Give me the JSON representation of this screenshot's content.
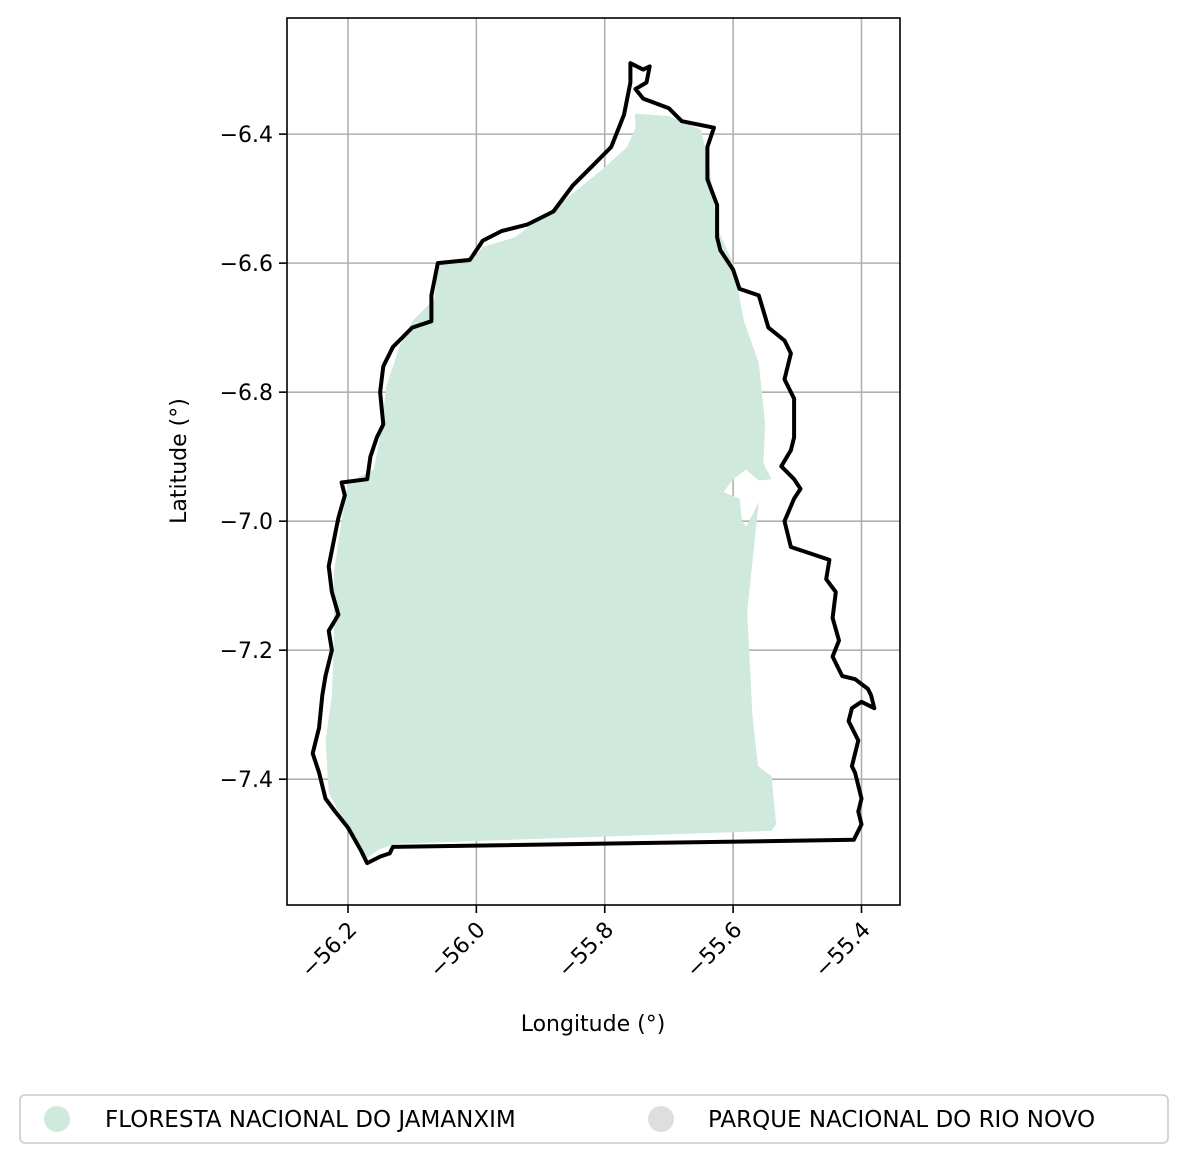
{
  "chart_data": {
    "type": "map",
    "xlabel": "Longitude (°)",
    "ylabel": "Latitude (°)",
    "xlim": [
      -56.295,
      -55.34
    ],
    "ylim": [
      -7.595,
      -6.22
    ],
    "grid": true,
    "x_ticks": [
      -56.2,
      -56.0,
      -55.8,
      -55.6,
      -55.4
    ],
    "y_ticks": [
      -6.4,
      -6.6,
      -6.8,
      -7.0,
      -7.2,
      -7.4
    ],
    "x_tick_labels": [
      "−56.2",
      "−56.0",
      "−55.8",
      "−55.6",
      "−55.4"
    ],
    "y_tick_labels": [
      "−6.4",
      "−6.6",
      "−6.8",
      "−7.0",
      "−7.2",
      "−7.4"
    ],
    "legend_position": "bottom",
    "series": [
      {
        "name": "FLORESTA NACIONAL DO JAMANXIM",
        "color": "#cfe9dd",
        "geometry_type": "polygon",
        "coordinates": [
          [
            -55.753,
            -6.368
          ],
          [
            -55.7,
            -6.372
          ],
          [
            -55.65,
            -6.393
          ],
          [
            -55.637,
            -6.45
          ],
          [
            -55.625,
            -6.545
          ],
          [
            -55.6,
            -6.6
          ],
          [
            -55.583,
            -6.69
          ],
          [
            -55.56,
            -6.755
          ],
          [
            -55.55,
            -6.85
          ],
          [
            -55.553,
            -6.91
          ],
          [
            -55.54,
            -6.935
          ],
          [
            -55.56,
            -6.937
          ],
          [
            -55.58,
            -6.92
          ],
          [
            -55.6,
            -6.935
          ],
          [
            -55.615,
            -6.955
          ],
          [
            -55.59,
            -6.965
          ],
          [
            -55.586,
            -7.0
          ],
          [
            -55.57,
            -7.02
          ],
          [
            -55.575,
            -7.06
          ],
          [
            -55.59,
            -7.095
          ],
          [
            -55.62,
            -7.115
          ],
          [
            -55.66,
            -7.13
          ],
          [
            -55.83,
            -7.16
          ],
          [
            -55.818,
            -7.148
          ],
          [
            -55.66,
            -7.115
          ],
          [
            -55.62,
            -7.095
          ],
          [
            -55.59,
            -7.07
          ],
          [
            -55.58,
            -7.01
          ],
          [
            -55.56,
            -6.97
          ],
          [
            -55.578,
            -7.14
          ],
          [
            -55.57,
            -7.3
          ],
          [
            -55.561,
            -7.38
          ],
          [
            -55.54,
            -7.395
          ],
          [
            -55.533,
            -7.47
          ],
          [
            -55.54,
            -7.48
          ],
          [
            -56.125,
            -7.5
          ],
          [
            -56.15,
            -7.508
          ],
          [
            -56.17,
            -7.522
          ],
          [
            -56.19,
            -7.49
          ],
          [
            -56.215,
            -7.45
          ],
          [
            -56.23,
            -7.42
          ],
          [
            -56.235,
            -7.34
          ],
          [
            -56.225,
            -7.27
          ],
          [
            -56.222,
            -7.18
          ],
          [
            -56.222,
            -7.08
          ],
          [
            -56.21,
            -7.0
          ],
          [
            -56.2,
            -6.94
          ],
          [
            -56.16,
            -6.92
          ],
          [
            -56.15,
            -6.87
          ],
          [
            -56.14,
            -6.79
          ],
          [
            -56.12,
            -6.73
          ],
          [
            -56.1,
            -6.69
          ],
          [
            -56.065,
            -6.655
          ],
          [
            -56.06,
            -6.6
          ],
          [
            -56.01,
            -6.6
          ],
          [
            -55.99,
            -6.575
          ],
          [
            -55.94,
            -6.56
          ],
          [
            -55.9,
            -6.53
          ],
          [
            -55.86,
            -6.5
          ],
          [
            -55.81,
            -6.46
          ],
          [
            -55.765,
            -6.42
          ],
          [
            -55.752,
            -6.39
          ]
        ]
      },
      {
        "name": "PARQUE NACIONAL DO RIO NOVO",
        "color": "#dedede",
        "geometry_type": "polygon",
        "coordinates": []
      }
    ],
    "boundary": {
      "color": "#000000",
      "coordinates": [
        [
          -55.76,
          -6.29
        ],
        [
          -55.74,
          -6.3
        ],
        [
          -55.73,
          -6.295
        ],
        [
          -55.735,
          -6.32
        ],
        [
          -55.752,
          -6.33
        ],
        [
          -55.74,
          -6.345
        ],
        [
          -55.7,
          -6.36
        ],
        [
          -55.68,
          -6.38
        ],
        [
          -55.63,
          -6.39
        ],
        [
          -55.64,
          -6.42
        ],
        [
          -55.64,
          -6.47
        ],
        [
          -55.625,
          -6.51
        ],
        [
          -55.625,
          -6.56
        ],
        [
          -55.62,
          -6.58
        ],
        [
          -55.6,
          -6.61
        ],
        [
          -55.59,
          -6.64
        ],
        [
          -55.56,
          -6.65
        ],
        [
          -55.545,
          -6.7
        ],
        [
          -55.52,
          -6.72
        ],
        [
          -55.51,
          -6.74
        ],
        [
          -55.52,
          -6.78
        ],
        [
          -55.505,
          -6.81
        ],
        [
          -55.505,
          -6.87
        ],
        [
          -55.51,
          -6.89
        ],
        [
          -55.525,
          -6.915
        ],
        [
          -55.505,
          -6.935
        ],
        [
          -55.495,
          -6.95
        ],
        [
          -55.505,
          -6.965
        ],
        [
          -55.52,
          -7.0
        ],
        [
          -55.51,
          -7.04
        ],
        [
          -55.48,
          -7.05
        ],
        [
          -55.45,
          -7.06
        ],
        [
          -55.455,
          -7.09
        ],
        [
          -55.44,
          -7.11
        ],
        [
          -55.445,
          -7.15
        ],
        [
          -55.435,
          -7.185
        ],
        [
          -55.445,
          -7.21
        ],
        [
          -55.43,
          -7.24
        ],
        [
          -55.41,
          -7.245
        ],
        [
          -55.39,
          -7.26
        ],
        [
          -55.385,
          -7.27
        ],
        [
          -55.38,
          -7.29
        ],
        [
          -55.4,
          -7.28
        ],
        [
          -55.415,
          -7.29
        ],
        [
          -55.42,
          -7.31
        ],
        [
          -55.405,
          -7.34
        ],
        [
          -55.415,
          -7.38
        ],
        [
          -55.41,
          -7.39
        ],
        [
          -55.4,
          -7.43
        ],
        [
          -55.405,
          -7.45
        ],
        [
          -55.4,
          -7.47
        ],
        [
          -55.412,
          -7.494
        ],
        [
          -56.13,
          -7.505
        ],
        [
          -56.135,
          -7.515
        ],
        [
          -56.15,
          -7.52
        ],
        [
          -56.17,
          -7.53
        ],
        [
          -56.18,
          -7.51
        ],
        [
          -56.2,
          -7.475
        ],
        [
          -56.22,
          -7.45
        ],
        [
          -56.235,
          -7.43
        ],
        [
          -56.245,
          -7.39
        ],
        [
          -56.255,
          -7.36
        ],
        [
          -56.245,
          -7.32
        ],
        [
          -56.24,
          -7.27
        ],
        [
          -56.235,
          -7.24
        ],
        [
          -56.225,
          -7.2
        ],
        [
          -56.23,
          -7.17
        ],
        [
          -56.215,
          -7.145
        ],
        [
          -56.225,
          -7.11
        ],
        [
          -56.23,
          -7.07
        ],
        [
          -56.22,
          -7.02
        ],
        [
          -56.215,
          -6.995
        ],
        [
          -56.205,
          -6.96
        ],
        [
          -56.21,
          -6.94
        ],
        [
          -56.17,
          -6.935
        ],
        [
          -56.165,
          -6.9
        ],
        [
          -56.155,
          -6.87
        ],
        [
          -56.145,
          -6.85
        ],
        [
          -56.15,
          -6.8
        ],
        [
          -56.145,
          -6.76
        ],
        [
          -56.13,
          -6.73
        ],
        [
          -56.1,
          -6.7
        ],
        [
          -56.07,
          -6.69
        ],
        [
          -56.07,
          -6.65
        ],
        [
          -56.06,
          -6.6
        ],
        [
          -56.01,
          -6.595
        ],
        [
          -55.99,
          -6.565
        ],
        [
          -55.96,
          -6.55
        ],
        [
          -55.92,
          -6.54
        ],
        [
          -55.88,
          -6.52
        ],
        [
          -55.85,
          -6.48
        ],
        [
          -55.82,
          -6.45
        ],
        [
          -55.79,
          -6.42
        ],
        [
          -55.77,
          -6.37
        ],
        [
          -55.76,
          -6.32
        ],
        [
          -55.76,
          -6.29
        ]
      ]
    }
  },
  "legend": {
    "items": [
      {
        "label": "FLORESTA NACIONAL DO JAMANXIM",
        "color": "#cfe9dd"
      },
      {
        "label": "PARQUE NACIONAL DO RIO NOVO",
        "color": "#dedede"
      }
    ]
  }
}
